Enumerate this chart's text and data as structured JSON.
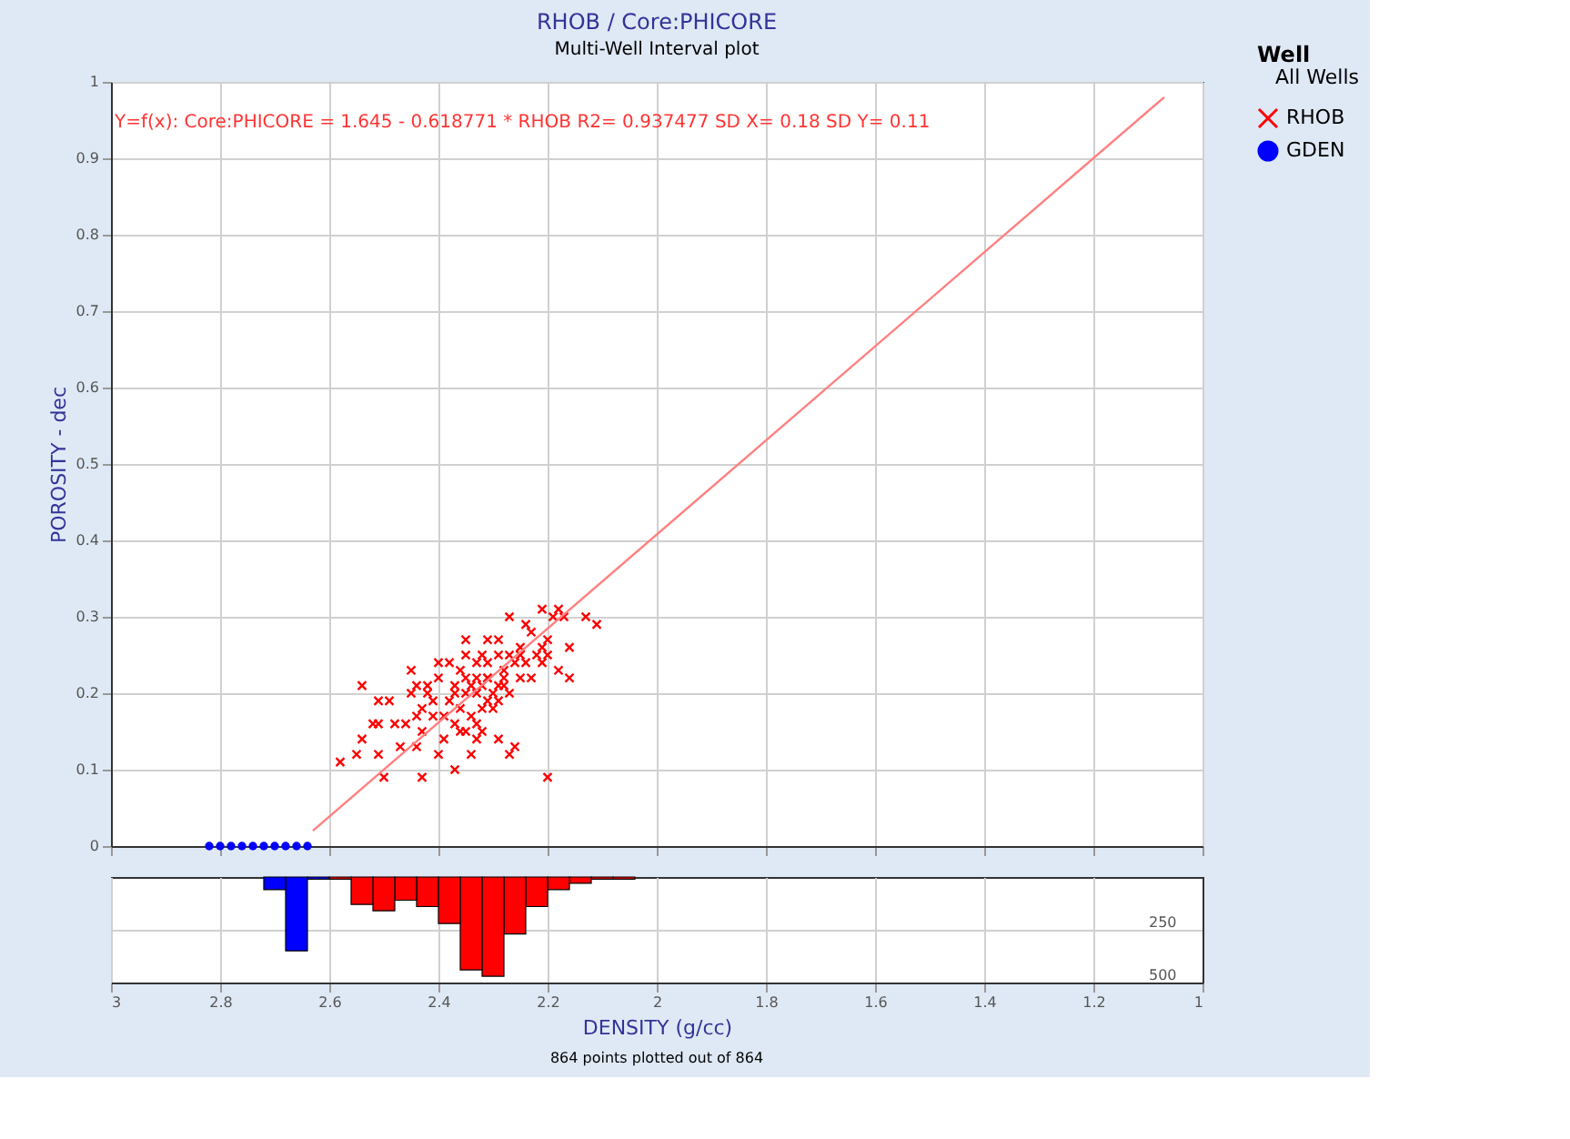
{
  "chart_data": [
    {
      "type": "scatter",
      "title": "RHOB / Core:PHICORE",
      "subtitle": "Multi-Well Interval plot",
      "ylabel": "POROSITY - dec",
      "legend_title": "Well",
      "legend": "top right",
      "grid": true,
      "tick_labels": "y",
      "xlim": [
        3,
        1
      ],
      "xticks": [
        3,
        2.8,
        2.6,
        2.4,
        2.2,
        2,
        1.8,
        1.6,
        1.4,
        1.2,
        1
      ],
      "ylim": [
        0,
        1
      ],
      "yticks": [
        0,
        0.1,
        0.2,
        0.3,
        0.4,
        0.5,
        0.6,
        0.7,
        0.8,
        0.9,
        1
      ],
      "annotations": [
        "Y=f(x): Core:PHICORE = 1.645  -  0.618771 * RHOB   R2= 0.937477 SD X= 0.18 SD Y= 0.11",
        "All Wells"
      ],
      "series": [
        {
          "name": "RHOB",
          "color": "#ff0000",
          "marker": "cross",
          "x": [
            2.58,
            2.55,
            2.51,
            2.5,
            2.54,
            2.52,
            2.51,
            2.48,
            2.46,
            2.44,
            2.54,
            2.51,
            2.49,
            2.45,
            2.45,
            2.44,
            2.42,
            2.4,
            2.4,
            2.43,
            2.47,
            2.43,
            2.44,
            2.4,
            2.39,
            2.37,
            2.36,
            2.34,
            2.33,
            2.32,
            2.29,
            2.26,
            2.27,
            2.2,
            2.35,
            2.31,
            2.27,
            2.24,
            2.21,
            2.18,
            2.13,
            2.11,
            2.16,
            2.16,
            2.18,
            2.2,
            2.21,
            2.23,
            2.25,
            2.26,
            2.28,
            2.29,
            2.31,
            2.33,
            2.35,
            2.37,
            2.38,
            2.36,
            2.34,
            2.32,
            2.3,
            2.29,
            2.27,
            2.25,
            2.23,
            2.21,
            2.32,
            2.33,
            2.34,
            2.31,
            2.29,
            2.27,
            2.25,
            2.36,
            2.38,
            2.41,
            2.39,
            2.43,
            2.42,
            2.41,
            2.37,
            2.35,
            2.33,
            2.31,
            2.3,
            2.28,
            2.24,
            2.22,
            2.2,
            2.19,
            2.17,
            2.32,
            2.35,
            2.29,
            2.37,
            2.35,
            2.33,
            2.31,
            2.28
          ],
          "values": [
            0.11,
            0.12,
            0.12,
            0.09,
            0.14,
            0.16,
            0.16,
            0.16,
            0.16,
            0.17,
            0.21,
            0.19,
            0.19,
            0.2,
            0.23,
            0.21,
            0.21,
            0.24,
            0.22,
            0.18,
            0.13,
            0.09,
            0.13,
            0.12,
            0.14,
            0.1,
            0.15,
            0.12,
            0.14,
            0.15,
            0.14,
            0.13,
            0.12,
            0.09,
            0.27,
            0.27,
            0.3,
            0.29,
            0.31,
            0.31,
            0.3,
            0.29,
            0.26,
            0.22,
            0.23,
            0.25,
            0.26,
            0.28,
            0.26,
            0.24,
            0.23,
            0.21,
            0.22,
            0.24,
            0.22,
            0.21,
            0.19,
            0.18,
            0.17,
            0.18,
            0.18,
            0.19,
            0.2,
            0.22,
            0.22,
            0.24,
            0.21,
            0.2,
            0.21,
            0.24,
            0.25,
            0.25,
            0.25,
            0.23,
            0.24,
            0.17,
            0.17,
            0.15,
            0.2,
            0.19,
            0.16,
            0.15,
            0.16,
            0.19,
            0.2,
            0.22,
            0.24,
            0.25,
            0.27,
            0.3,
            0.3,
            0.25,
            0.25,
            0.27,
            0.2,
            0.2,
            0.22,
            0.22,
            0.21
          ]
        },
        {
          "name": "GDEN",
          "color": "#0000ff",
          "marker": "circle",
          "x": [
            2.82,
            2.8,
            2.78,
            2.76,
            2.74,
            2.72,
            2.7,
            2.68,
            2.66,
            2.64
          ],
          "values": [
            0,
            0,
            0,
            0,
            0,
            0,
            0,
            0,
            0,
            0
          ]
        },
        {
          "type": "line",
          "color": "#ff8080",
          "line_style": "solid",
          "x": [
            2.63,
            1.07
          ],
          "values": [
            0.02,
            0.98
          ]
        }
      ]
    },
    {
      "type": "histogram",
      "xlabel": "DENSITY (g/cc)",
      "grid": true,
      "xlim": [
        3,
        1
      ],
      "xticks": [
        3,
        2.8,
        2.6,
        2.4,
        2.2,
        2,
        1.8,
        1.6,
        1.4,
        1.2,
        1
      ],
      "ylim": [
        500,
        0
      ],
      "yticks": [
        250,
        500
      ],
      "annotations": [
        "864 points plotted out of 864"
      ],
      "bins": [
        1.96,
        2.0,
        2.04,
        2.08,
        2.12,
        2.16,
        2.2,
        2.24,
        2.28,
        2.32,
        2.36,
        2.4,
        2.44,
        2.48,
        2.52,
        2.56,
        2.6,
        2.64,
        2.68,
        2.72,
        2.76
      ],
      "series": [
        {
          "color": "#ff0000",
          "values": [
            null,
            null,
            10,
            10,
            30,
            60,
            140,
            270,
            470,
            440,
            220,
            140,
            110,
            160,
            130,
            10,
            null,
            null,
            null,
            null
          ]
        },
        {
          "color": "#0000ff",
          "values": [
            null,
            null,
            null,
            null,
            null,
            null,
            null,
            null,
            null,
            null,
            null,
            null,
            null,
            null,
            null,
            null,
            10,
            350,
            60,
            null
          ]
        }
      ]
    }
  ]
}
